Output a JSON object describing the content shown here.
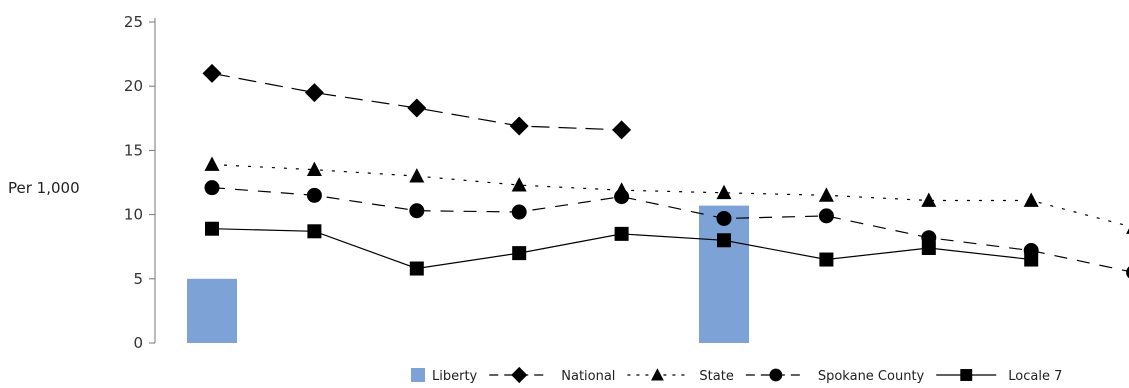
{
  "chart_data": {
    "type": "bar+line",
    "ylabel": "Per 1,000",
    "ylim": [
      0,
      25
    ],
    "yticks": [
      "0",
      "5",
      "10",
      "15",
      "20",
      "25"
    ],
    "x_count": 10,
    "grid": false,
    "legend_position": "bottom-right",
    "colors": {
      "bar": "#7da3d6",
      "line": "#000000"
    },
    "series": [
      {
        "name": "Liberty",
        "kind": "bar",
        "values": [
          5.0,
          null,
          null,
          null,
          null,
          10.7,
          null,
          null,
          null,
          null
        ]
      },
      {
        "name": "National",
        "kind": "line",
        "marker": "diamond",
        "dash": "long-dash",
        "values": [
          21.0,
          19.5,
          18.3,
          16.9,
          16.6,
          null,
          null,
          null,
          null,
          null
        ]
      },
      {
        "name": "State",
        "kind": "line",
        "marker": "triangle",
        "dash": "dotted",
        "values": [
          13.9,
          13.5,
          13.0,
          12.3,
          11.9,
          11.7,
          11.5,
          11.1,
          11.1,
          9.0
        ]
      },
      {
        "name": "Spokane County",
        "kind": "line",
        "marker": "circle",
        "dash": "dashed",
        "values": [
          12.1,
          11.5,
          10.3,
          10.2,
          11.4,
          9.7,
          9.9,
          8.2,
          7.2,
          5.5
        ]
      },
      {
        "name": "Locale 7",
        "kind": "line",
        "marker": "square",
        "dash": "solid",
        "values": [
          8.9,
          8.7,
          5.8,
          7.0,
          8.5,
          8.0,
          6.5,
          7.4,
          6.5,
          null
        ]
      }
    ]
  }
}
